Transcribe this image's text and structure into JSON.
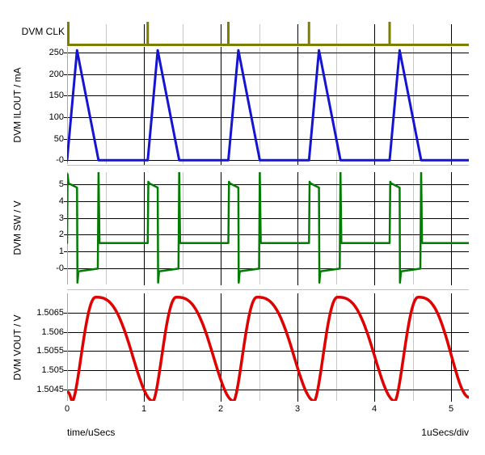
{
  "x_axis": {
    "label": "time/uSecs",
    "scale_label": "1uSecs/div",
    "tick_values": [
      0,
      1,
      2,
      3,
      4,
      5
    ],
    "tick_labels": [
      "0",
      "1",
      "2",
      "3",
      "4",
      "5"
    ],
    "minor_tick_step": 0.5,
    "t_min": 0,
    "t_max": 5.23,
    "units": "uSecs"
  },
  "colors": {
    "clk": "#7d7d00",
    "ilout": "#1414d2",
    "sw": "#007d00",
    "vout": "#e00000",
    "grid_major": "#000000",
    "grid_minor": "#c8c8c8",
    "border": "#a8a8a8",
    "separator": "#c0c0c0",
    "text": "#000000",
    "background": "#ffffff"
  },
  "chart_data": [
    {
      "id": "clk",
      "type": "digital-pulse",
      "label": "DVM CLK",
      "color_key": "clk",
      "baseline_level": 0,
      "high_level": 1,
      "pulse_times": [
        0,
        1.05,
        2.1,
        3.15,
        4.2
      ],
      "pulse_period_us": 1.05
    },
    {
      "id": "ilout",
      "type": "line",
      "ylabel": "DVM ILOUT / mA",
      "color_key": "ilout",
      "ytick_values": [
        250,
        200,
        150,
        100,
        50,
        0
      ],
      "ytick_labels": [
        "250",
        "200",
        "150",
        "100",
        "50",
        "-0"
      ],
      "yrange": [
        -9,
        263
      ],
      "peak_mA": 255,
      "points": [
        [
          0,
          0
        ],
        [
          0.13,
          255
        ],
        [
          0.41,
          0
        ],
        [
          1.05,
          0
        ],
        [
          1.18,
          255
        ],
        [
          1.46,
          0
        ],
        [
          2.1,
          0
        ],
        [
          2.23,
          255
        ],
        [
          2.51,
          0
        ],
        [
          3.15,
          0
        ],
        [
          3.28,
          255
        ],
        [
          3.56,
          0
        ],
        [
          4.2,
          0
        ],
        [
          4.33,
          255
        ],
        [
          4.61,
          0
        ],
        [
          5.233,
          0
        ]
      ]
    },
    {
      "id": "sw",
      "type": "line",
      "ylabel": "DVM SW / V",
      "color_key": "sw",
      "ytick_values": [
        5,
        4,
        3,
        2,
        1,
        0
      ],
      "ytick_labels": [
        "5",
        "4",
        "3",
        "2",
        "1",
        "-0"
      ],
      "yrange": [
        -0.96,
        5.72
      ],
      "points": [
        [
          0,
          1.5
        ],
        [
          0.006,
          5.6
        ],
        [
          0.02,
          5.05
        ],
        [
          0.13,
          4.8
        ],
        [
          0.135,
          -0.85
        ],
        [
          0.148,
          -0.18
        ],
        [
          0.4,
          -0.02
        ],
        [
          0.41,
          5.75
        ],
        [
          0.422,
          1.5
        ],
        [
          1.05,
          1.5
        ],
        [
          1.058,
          5.15
        ],
        [
          1.07,
          5.05
        ],
        [
          1.18,
          4.8
        ],
        [
          1.185,
          -0.85
        ],
        [
          1.198,
          -0.18
        ],
        [
          1.45,
          -0.02
        ],
        [
          1.46,
          5.75
        ],
        [
          1.472,
          1.5
        ],
        [
          2.1,
          1.5
        ],
        [
          2.108,
          5.15
        ],
        [
          2.12,
          5.05
        ],
        [
          2.23,
          4.8
        ],
        [
          2.235,
          -0.85
        ],
        [
          2.248,
          -0.18
        ],
        [
          2.5,
          -0.02
        ],
        [
          2.51,
          5.75
        ],
        [
          2.522,
          1.5
        ],
        [
          3.15,
          1.5
        ],
        [
          3.158,
          5.15
        ],
        [
          3.17,
          5.05
        ],
        [
          3.28,
          4.8
        ],
        [
          3.285,
          -0.85
        ],
        [
          3.298,
          -0.18
        ],
        [
          3.55,
          -0.02
        ],
        [
          3.56,
          5.75
        ],
        [
          3.572,
          1.5
        ],
        [
          4.2,
          1.5
        ],
        [
          4.208,
          5.15
        ],
        [
          4.22,
          5.05
        ],
        [
          4.33,
          4.8
        ],
        [
          4.335,
          -0.85
        ],
        [
          4.348,
          -0.18
        ],
        [
          4.6,
          -0.02
        ],
        [
          4.61,
          5.75
        ],
        [
          4.622,
          1.5
        ],
        [
          5.233,
          1.5
        ]
      ]
    },
    {
      "id": "vout",
      "type": "line",
      "interpolation": "smooth",
      "ylabel": "DVM VOUT / V",
      "color_key": "vout",
      "ytick_values": [
        1.5065,
        1.506,
        1.5055,
        1.505,
        1.5045
      ],
      "ytick_labels": [
        "1.5065",
        "1.506",
        "1.5055",
        "1.505",
        "1.5045"
      ],
      "yrange": [
        1.504208,
        1.507
      ],
      "keypoints": [
        [
          0,
          1.50444
        ],
        [
          0.07,
          1.5042
        ],
        [
          0.37,
          1.5069
        ],
        [
          1.12,
          1.5042
        ],
        [
          1.42,
          1.5069
        ],
        [
          2.17,
          1.5042
        ],
        [
          2.47,
          1.5069
        ],
        [
          3.22,
          1.5042
        ],
        [
          3.52,
          1.5069
        ],
        [
          4.27,
          1.5042
        ],
        [
          4.57,
          1.5069
        ],
        [
          5.233,
          1.5043
        ]
      ]
    }
  ]
}
